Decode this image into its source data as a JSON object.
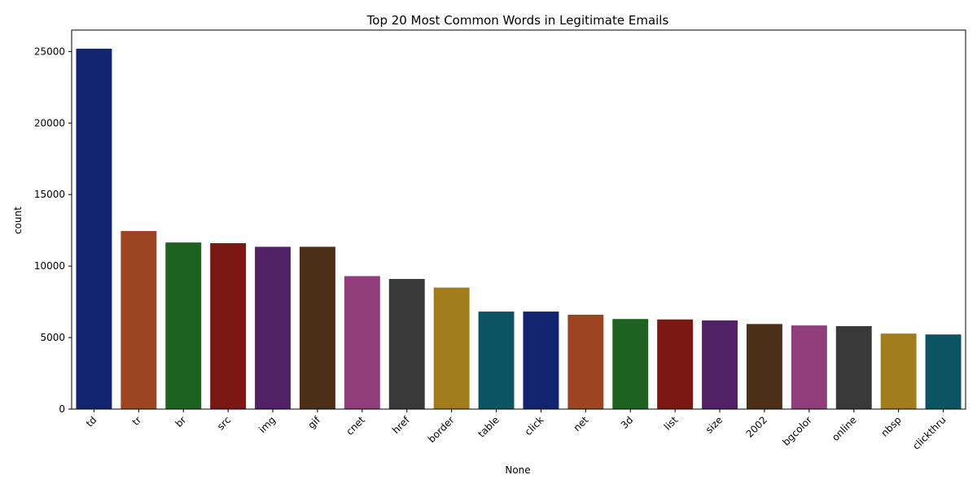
{
  "chart_data": {
    "type": "bar",
    "title": "Top 20 Most Common Words in Legitimate Emails",
    "xlabel": "None",
    "ylabel": "count",
    "ylim": [
      0,
      26500
    ],
    "yticks": [
      0,
      5000,
      10000,
      15000,
      20000,
      25000
    ],
    "grid": false,
    "categories": [
      "td",
      "tr",
      "br",
      "src",
      "img",
      "gif",
      "cnet",
      "href",
      "border",
      "table",
      "click",
      "net",
      "3d",
      "list",
      "size",
      "2002",
      "bgcolor",
      "online",
      "nbsp",
      "clickthru"
    ],
    "values": [
      25200,
      12450,
      11650,
      11600,
      11350,
      11350,
      9300,
      9100,
      8500,
      6820,
      6820,
      6600,
      6300,
      6270,
      6200,
      5950,
      5850,
      5800,
      5280,
      5220
    ],
    "colors": [
      "#12246f",
      "#9d4420",
      "#1d6220",
      "#7d1714",
      "#522267",
      "#4d2e17",
      "#913d7b",
      "#393939",
      "#a17d1e",
      "#0b5563",
      "#12246f",
      "#9d4420",
      "#1d6220",
      "#7d1714",
      "#522267",
      "#4d2e17",
      "#913d7b",
      "#393939",
      "#a17d1e",
      "#0b5563"
    ]
  }
}
